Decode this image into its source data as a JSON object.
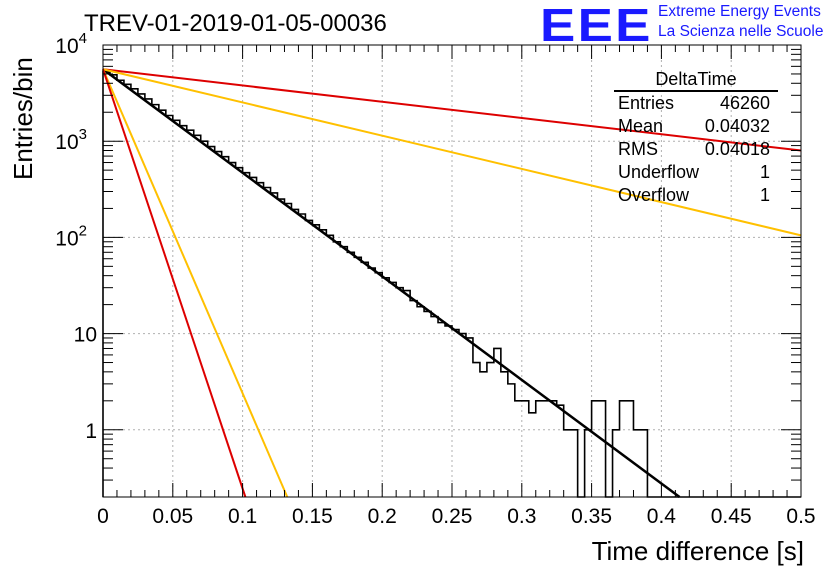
{
  "header": {
    "title": "TREV-01-2019-01-05-00036",
    "logo_text": "EEE",
    "logo_line1": "Extreme Energy Events",
    "logo_line2": "La Scienza nelle Scuole"
  },
  "stats": {
    "title": "DeltaTime",
    "rows": [
      {
        "label": "Entries",
        "value": "46260"
      },
      {
        "label": "Mean",
        "value": "0.04032"
      },
      {
        "label": "RMS",
        "value": "0.04018"
      },
      {
        "label": "Underflow",
        "value": "1"
      },
      {
        "label": "Overflow",
        "value": "1"
      }
    ]
  },
  "chart_data": {
    "type": "histogram",
    "xlabel": "Time difference [s]",
    "ylabel": "Entries/bin",
    "xlim": [
      0,
      0.5
    ],
    "ylim": [
      0.2,
      10000
    ],
    "yscale": "log",
    "grid": true,
    "x_ticks": [
      {
        "value": 0,
        "label": "0"
      },
      {
        "value": 0.05,
        "label": "0.05"
      },
      {
        "value": 0.1,
        "label": "0.1"
      },
      {
        "value": 0.15,
        "label": "0.15"
      },
      {
        "value": 0.2,
        "label": "0.2"
      },
      {
        "value": 0.25,
        "label": "0.25"
      },
      {
        "value": 0.3,
        "label": "0.3"
      },
      {
        "value": 0.35,
        "label": "0.35"
      },
      {
        "value": 0.4,
        "label": "0.4"
      },
      {
        "value": 0.45,
        "label": "0.45"
      },
      {
        "value": 0.5,
        "label": "0.5"
      }
    ],
    "y_ticks": [
      {
        "value": 1,
        "base": "1",
        "exp": ""
      },
      {
        "value": 10,
        "base": "10",
        "exp": ""
      },
      {
        "value": 100,
        "base": "10",
        "exp": "2"
      },
      {
        "value": 1000,
        "base": "10",
        "exp": "3"
      },
      {
        "value": 10000,
        "base": "10",
        "exp": "4"
      }
    ],
    "histogram": {
      "bin_width": 0.005,
      "color": "#000000",
      "counts": [
        5300,
        4900,
        4300,
        3900,
        3500,
        3100,
        2750,
        2400,
        2100,
        1850,
        1650,
        1450,
        1300,
        1150,
        1000,
        880,
        780,
        690,
        600,
        530,
        470,
        420,
        370,
        330,
        290,
        250,
        225,
        195,
        175,
        150,
        135,
        120,
        105,
        90,
        80,
        70,
        62,
        55,
        48,
        43,
        38,
        34,
        30,
        28,
        22,
        19,
        17,
        15,
        13,
        12,
        11,
        10,
        9,
        5,
        4,
        5,
        7,
        4,
        3,
        2,
        2,
        1.5,
        2,
        2,
        2,
        1.8,
        1,
        1,
        0.1,
        1,
        2,
        2,
        0.1,
        1,
        2,
        2,
        1,
        1,
        0.1,
        0.1,
        0.1,
        0.1,
        0.1,
        0.1,
        0.1,
        0.1,
        0.1,
        0.1,
        0.1,
        0.1,
        0.1,
        0.1,
        0.1,
        0.1,
        0.1,
        0.1,
        0.1,
        0.1,
        0.1,
        0.1
      ]
    },
    "fit_lines": [
      {
        "color": "#000000",
        "x": [
          0,
          0.413
        ],
        "y": [
          5600,
          0.2
        ]
      },
      {
        "color": "#dd0000",
        "x": [
          0,
          0.5
        ],
        "y": [
          5600,
          800
        ]
      },
      {
        "color": "#ffc000",
        "x": [
          0,
          0.5
        ],
        "y": [
          5600,
          105
        ]
      },
      {
        "color": "#ffc000",
        "x": [
          0,
          0.132
        ],
        "y": [
          5600,
          0.2
        ]
      },
      {
        "color": "#dd0000",
        "x": [
          0,
          0.102
        ],
        "y": [
          5600,
          0.2
        ]
      }
    ]
  }
}
